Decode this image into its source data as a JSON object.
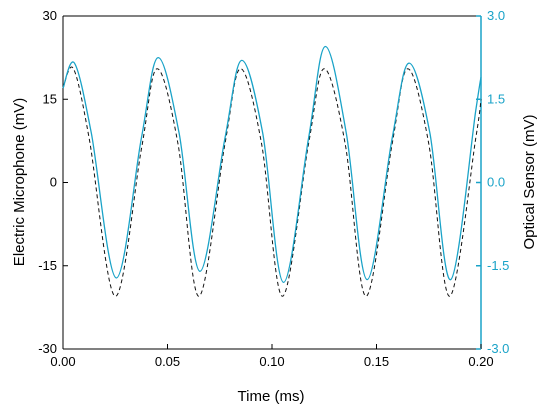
{
  "colors": {
    "left_axis": "#000000",
    "right_axis": "#1aa3c8",
    "microphone_series": "#111111",
    "optical_series": "#1aa3c8"
  },
  "chart_data": {
    "type": "line",
    "title": "",
    "xlabel": "Time (ms)",
    "ylabel_left": "Electric Microphone (mV)",
    "ylabel_right": "Optical Sensor (mV)",
    "xlim": [
      0.0,
      0.2
    ],
    "ylim_left": [
      -30,
      30
    ],
    "ylim_right": [
      -3.0,
      3.0
    ],
    "x_ticks": [
      "0.00",
      "0.05",
      "0.10",
      "0.15",
      "0.20"
    ],
    "y_left_ticks": [
      "-30",
      "-15",
      "0",
      "15",
      "30"
    ],
    "y_right_ticks": [
      "-3.0",
      "-1.5",
      "0.0",
      "1.5",
      "3.0"
    ],
    "grid": false,
    "legend": "none",
    "series": [
      {
        "axis": "left",
        "style": "dashed",
        "x": [
          0.0,
          0.005,
          0.0125,
          0.025,
          0.0375,
          0.045,
          0.055,
          0.065,
          0.0775,
          0.085,
          0.095,
          0.105,
          0.1175,
          0.125,
          0.135,
          0.145,
          0.1575,
          0.165,
          0.175,
          0.185,
          0.1975,
          0.2
        ],
        "y": [
          17,
          20.5,
          8,
          -20.5,
          6,
          20.5,
          7,
          -20.5,
          7,
          20.5,
          7,
          -20.5,
          7,
          20.5,
          7,
          -20.5,
          7,
          20.5,
          7,
          -20.5,
          8,
          15
        ]
      },
      {
        "axis": "right",
        "style": "solid",
        "x": [
          0.0,
          0.0055,
          0.0135,
          0.0255,
          0.0375,
          0.0455,
          0.0555,
          0.0655,
          0.0775,
          0.0855,
          0.0955,
          0.1055,
          0.1175,
          0.1255,
          0.1355,
          0.1455,
          0.1575,
          0.1655,
          0.1755,
          0.1855,
          0.1975,
          0.2
        ],
        "y": [
          1.7,
          2.15,
          0.9,
          -1.72,
          0.8,
          2.25,
          0.9,
          -1.6,
          0.8,
          2.2,
          0.9,
          -1.8,
          0.8,
          2.45,
          0.9,
          -1.75,
          0.8,
          2.15,
          0.9,
          -1.75,
          1.3,
          1.9
        ]
      }
    ]
  }
}
